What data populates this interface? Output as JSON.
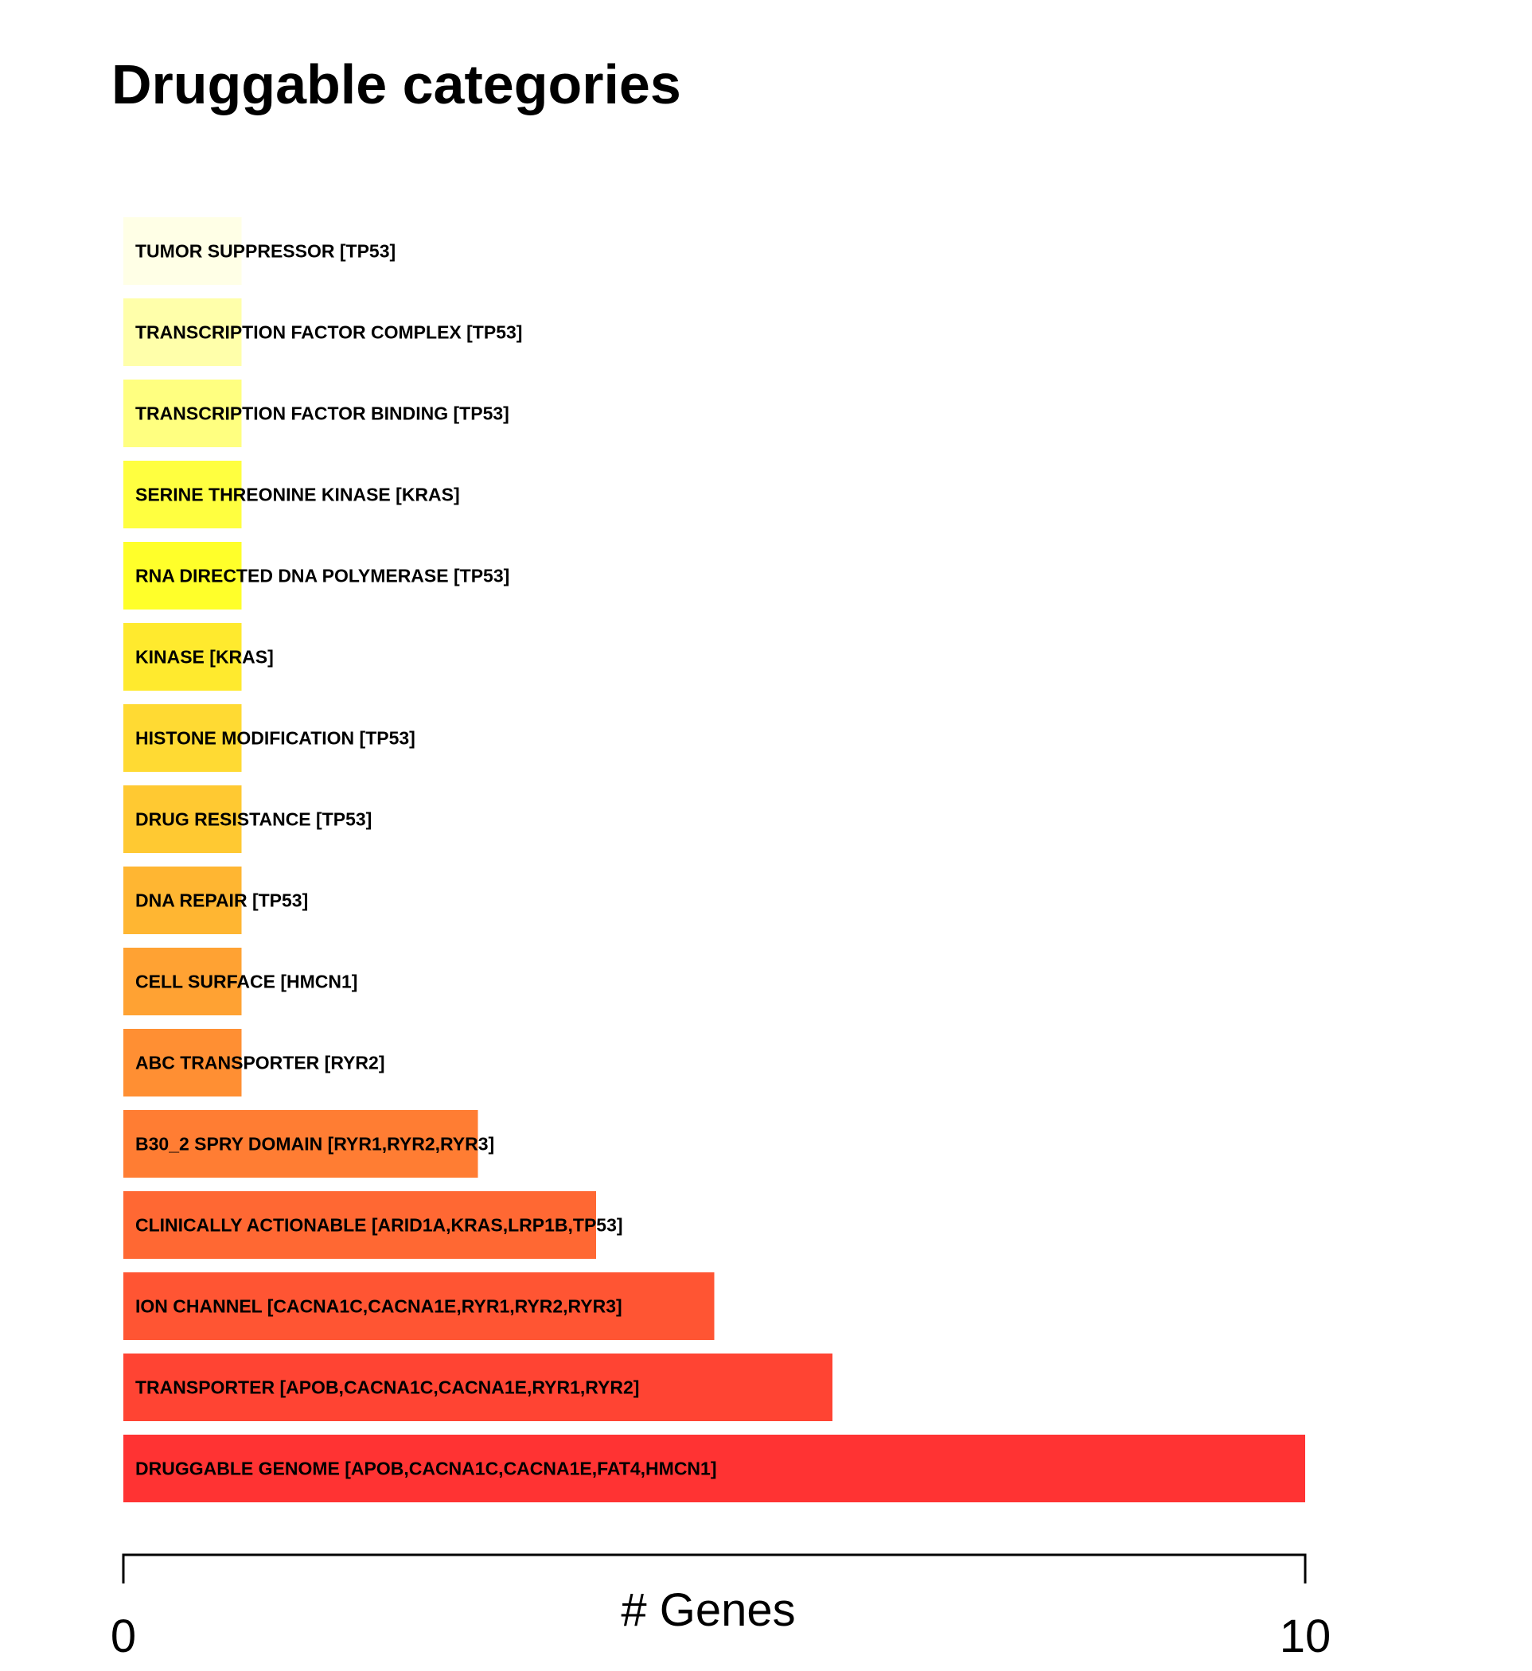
{
  "chart_data": {
    "type": "bar",
    "orientation": "horizontal",
    "title": "Druggable categories",
    "xlabel": "# Genes",
    "ylabel": "",
    "xlim": [
      0,
      10
    ],
    "x_ticks": [
      "0",
      "10"
    ],
    "grid": false,
    "legend": "none",
    "categories": [
      "TUMOR SUPPRESSOR [TP53]",
      "TRANSCRIPTION FACTOR COMPLEX [TP53]",
      "TRANSCRIPTION FACTOR BINDING [TP53]",
      "SERINE THREONINE KINASE [KRAS]",
      "RNA DIRECTED DNA POLYMERASE [TP53]",
      "KINASE [KRAS]",
      "HISTONE MODIFICATION [TP53]",
      "DRUG RESISTANCE [TP53]",
      "DNA REPAIR [TP53]",
      "CELL SURFACE [HMCN1]",
      "ABC TRANSPORTER [RYR2]",
      "B30_2 SPRY DOMAIN [RYR1,RYR2,RYR3]",
      "CLINICALLY ACTIONABLE [ARID1A,KRAS,LRP1B,TP53]",
      "ION CHANNEL [CACNA1C,CACNA1E,RYR1,RYR2,RYR3]",
      "TRANSPORTER [APOB,CACNA1C,CACNA1E,RYR1,RYR2]",
      "DRUGGABLE GENOME [APOB,CACNA1C,CACNA1E,FAT4,HMCN1]"
    ],
    "values": [
      1,
      1,
      1,
      1,
      1,
      1,
      1,
      1,
      1,
      1,
      1,
      3,
      4,
      5,
      6,
      10
    ],
    "colors": [
      "#FFFFE6",
      "#FFFFAA",
      "#FFFF80",
      "#FFFF40",
      "#FFFF2A",
      "#FFEA2E",
      "#FFDA33",
      "#FFC932",
      "#FFB632",
      "#FFA233",
      "#FF8F33",
      "#FF7D33",
      "#FF6833",
      "#FF5533",
      "#FF4433",
      "#FF3333"
    ]
  }
}
